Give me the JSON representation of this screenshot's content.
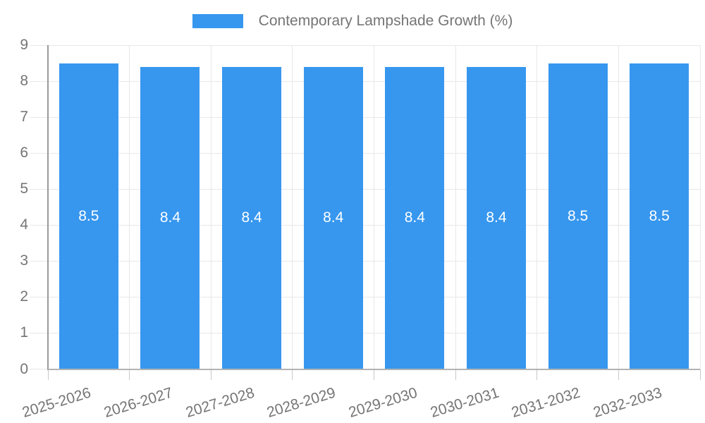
{
  "chart_data": {
    "type": "bar",
    "title": "Contemporary Lampshade Growth (%)",
    "categories": [
      "2025-2026",
      "2026-2027",
      "2027-2028",
      "2028-2029",
      "2029-2030",
      "2030-2031",
      "2031-2032",
      "2032-2033"
    ],
    "values": [
      8.5,
      8.4,
      8.4,
      8.4,
      8.4,
      8.4,
      8.5,
      8.5
    ],
    "value_decimals": 1,
    "ylim": [
      0,
      9
    ],
    "yticks": [
      0,
      1,
      2,
      3,
      4,
      5,
      6,
      7,
      8,
      9
    ],
    "grid": true,
    "legend_position": "top-center",
    "x_label_rotation_deg": -17,
    "colors": {
      "bar": "#3797EF",
      "text": "#757575",
      "bar_label": "#ffffff",
      "grid": "#e8e8e8",
      "y_axis_line": "#9a9a9a",
      "x_axis_line": "#b3b3b3",
      "tick": "#c9c9c9",
      "background": "#ffffff"
    }
  }
}
